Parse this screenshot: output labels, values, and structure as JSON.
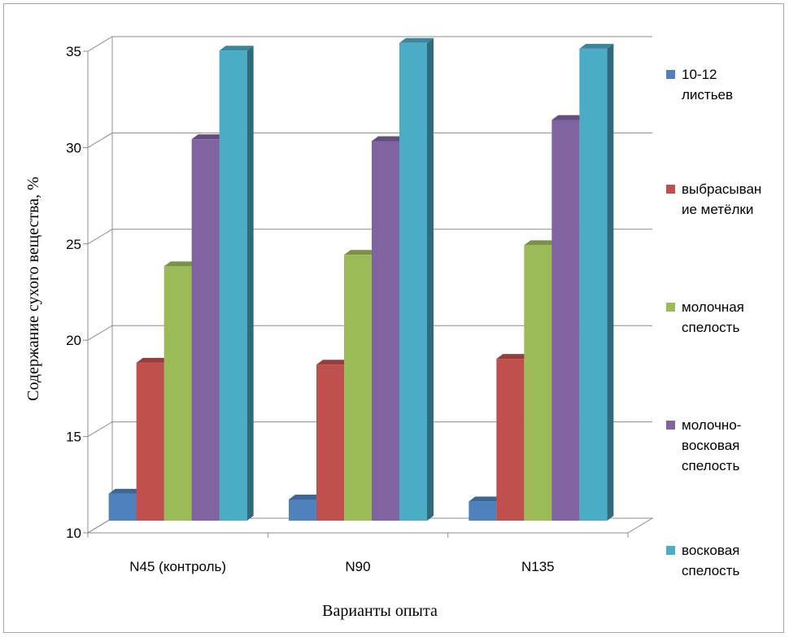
{
  "chart_data": {
    "type": "bar",
    "style": "3d-clustered-column",
    "xlabel": "Варианты опыта",
    "ylabel": "Содержание сухого вещества, %",
    "ylim": [
      10,
      35
    ],
    "yticks": [
      "10",
      "15",
      "20",
      "25",
      "30",
      "35"
    ],
    "grid": true,
    "legend_position": "right",
    "categories": [
      "N45 (контроль)",
      "N90",
      "N135"
    ],
    "series": [
      {
        "name": "10-12 листьев",
        "legend_lines": [
          "10-12",
          "листьев"
        ],
        "color": "#4f81bd",
        "values": [
          11.4,
          11.1,
          11.0
        ]
      },
      {
        "name": "выбрасывание метёлки",
        "legend_lines": [
          "выбрасыван",
          "ие метёлки"
        ],
        "color": "#c0504d",
        "values": [
          18.2,
          18.1,
          18.4
        ]
      },
      {
        "name": "молочная спелость",
        "legend_lines": [
          "молочная",
          "спелость"
        ],
        "color": "#9bbb59",
        "values": [
          23.2,
          23.8,
          24.3
        ]
      },
      {
        "name": "молочно-восковая спелость",
        "legend_lines": [
          "молочно-",
          "восковая",
          "спелость"
        ],
        "color": "#8064a2",
        "values": [
          29.8,
          29.7,
          30.8
        ]
      },
      {
        "name": "восковая спелость",
        "legend_lines": [
          "восковая",
          "спелость"
        ],
        "color": "#4bacc6",
        "values": [
          34.4,
          34.8,
          34.5
        ]
      }
    ]
  }
}
